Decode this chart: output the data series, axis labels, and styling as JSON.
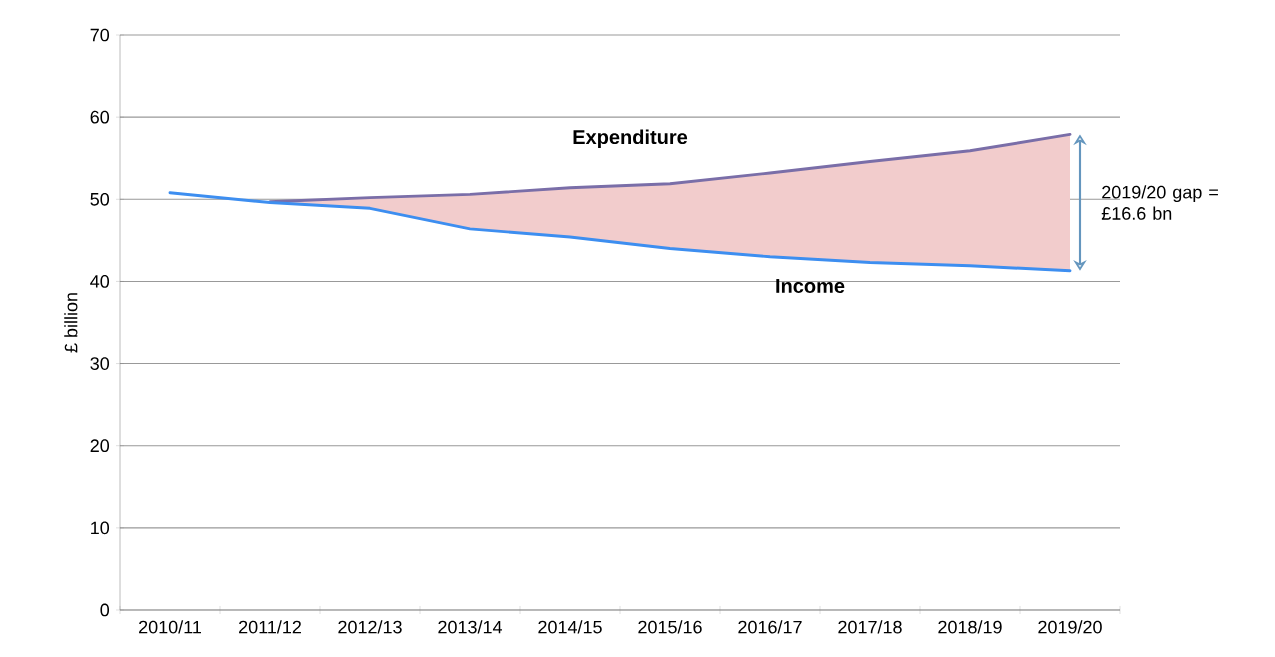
{
  "chart_data": {
    "type": "line",
    "ylabel": "£ billion",
    "categories": [
      "2010/11",
      "2011/12",
      "2012/13",
      "2013/14",
      "2014/15",
      "2015/16",
      "2016/17",
      "2017/18",
      "2018/19",
      "2019/20"
    ],
    "series": [
      {
        "name": "Expenditure",
        "color": "#7a6ea8",
        "values": [
          null,
          49.7,
          50.2,
          50.6,
          51.4,
          51.9,
          53.2,
          54.6,
          55.9,
          57.9
        ],
        "lower": [
          null,
          49.7,
          48.9,
          46.4,
          45.4,
          44.0,
          43.0,
          42.3,
          41.9,
          41.3
        ],
        "upper": [
          null,
          49.7,
          50.2,
          50.6,
          51.4,
          51.9,
          53.2,
          54.6,
          55.9,
          57.9
        ]
      },
      {
        "name": "Income",
        "color": "#3d8ef0",
        "values": [
          50.8,
          49.6,
          48.9,
          46.4,
          45.4,
          44.0,
          43.0,
          42.3,
          41.9,
          41.3
        ]
      }
    ],
    "ylim": [
      0,
      70
    ],
    "yticks": [
      0,
      10,
      20,
      30,
      40,
      50,
      60,
      70
    ],
    "grid": "y",
    "legend": false,
    "marker": "none",
    "line_style": "solid",
    "annotations": [
      "2019/20 gap = £16.6 bn"
    ]
  }
}
